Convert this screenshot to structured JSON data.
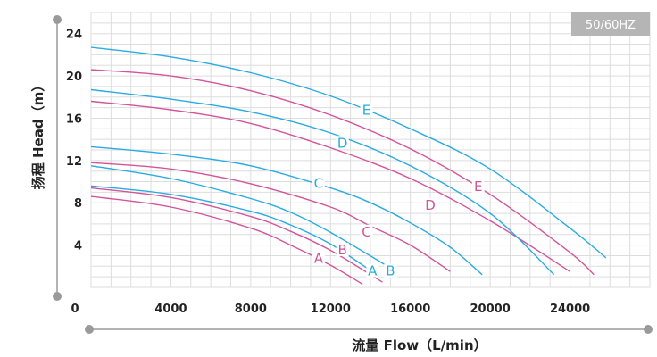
{
  "badge": "50/60HZ",
  "chart_data": {
    "type": "line",
    "xlabel": "流量 Flow（L/min）",
    "ylabel": "扬程 Head（m）",
    "xlim": [
      0,
      28000
    ],
    "ylim": [
      0,
      26
    ],
    "x_ticks": [
      "0",
      "4000",
      "8000",
      "12000",
      "16000",
      "20000",
      "24000"
    ],
    "x_tick_values": [
      0,
      4000,
      8000,
      12000,
      16000,
      20000,
      24000
    ],
    "y_ticks": [
      "4",
      "8",
      "12",
      "16",
      "20",
      "24"
    ],
    "y_tick_values": [
      4,
      8,
      12,
      16,
      20,
      24
    ],
    "grid": true,
    "colors": {
      "cyan": "#29abe2",
      "magenta": "#d2549a"
    },
    "series": [
      {
        "name": "A",
        "color": "#d2549a",
        "points": [
          [
            0,
            8.6
          ],
          [
            4000,
            7.6
          ],
          [
            8000,
            5.6
          ],
          [
            10000,
            4.0
          ],
          [
            12000,
            2.1
          ],
          [
            13600,
            0.3
          ]
        ],
        "label_at": [
          11400,
          2.5
        ]
      },
      {
        "name": "B",
        "color": "#d2549a",
        "points": [
          [
            0,
            9.4
          ],
          [
            4000,
            8.5
          ],
          [
            8000,
            6.7
          ],
          [
            10000,
            5.3
          ],
          [
            12000,
            3.5
          ],
          [
            14600,
            0.5
          ]
        ],
        "label_at": [
          12600,
          3.3
        ]
      },
      {
        "name": "A",
        "color": "#29abe2",
        "points": [
          [
            0,
            9.6
          ],
          [
            4000,
            8.8
          ],
          [
            8000,
            7.2
          ],
          [
            10000,
            5.9
          ],
          [
            12000,
            4.1
          ],
          [
            14000,
            1.6
          ]
        ],
        "label_at": [
          14100,
          1.3
        ]
      },
      {
        "name": "B",
        "color": "#29abe2",
        "points": [
          [
            0,
            11.5
          ],
          [
            4000,
            10.3
          ],
          [
            8000,
            8.4
          ],
          [
            10000,
            7.1
          ],
          [
            12000,
            5.2
          ],
          [
            15300,
            1.5
          ]
        ],
        "label_at": [
          15000,
          1.3
        ]
      },
      {
        "name": "C",
        "color": "#d2549a",
        "points": [
          [
            0,
            11.8
          ],
          [
            4000,
            11.2
          ],
          [
            8000,
            9.8
          ],
          [
            12000,
            7.6
          ],
          [
            14000,
            5.8
          ],
          [
            16000,
            4.0
          ],
          [
            18000,
            1.5
          ]
        ],
        "label_at": [
          13800,
          5.0
        ]
      },
      {
        "name": "C",
        "color": "#29abe2",
        "points": [
          [
            0,
            13.3
          ],
          [
            4000,
            12.6
          ],
          [
            8000,
            11.5
          ],
          [
            12000,
            9.4
          ],
          [
            14000,
            8.0
          ],
          [
            16000,
            6.1
          ],
          [
            18000,
            3.8
          ],
          [
            19600,
            1.2
          ]
        ],
        "label_at": [
          11400,
          9.6
        ]
      },
      {
        "name": "D",
        "color": "#d2549a",
        "points": [
          [
            0,
            17.6
          ],
          [
            4000,
            16.8
          ],
          [
            8000,
            15.5
          ],
          [
            12000,
            13.2
          ],
          [
            16000,
            10.3
          ],
          [
            20000,
            6.3
          ],
          [
            24000,
            1.5
          ]
        ],
        "label_at": [
          17000,
          7.5
        ]
      },
      {
        "name": "D",
        "color": "#29abe2",
        "points": [
          [
            0,
            18.7
          ],
          [
            4000,
            17.8
          ],
          [
            8000,
            16.6
          ],
          [
            12000,
            14.6
          ],
          [
            16000,
            11.5
          ],
          [
            20000,
            7.0
          ],
          [
            23200,
            1.2
          ]
        ],
        "label_at": [
          12600,
          13.4
        ]
      },
      {
        "name": "E",
        "color": "#d2549a",
        "points": [
          [
            0,
            20.6
          ],
          [
            4000,
            20.0
          ],
          [
            8000,
            18.6
          ],
          [
            12000,
            16.3
          ],
          [
            16000,
            13.1
          ],
          [
            20000,
            8.8
          ],
          [
            24000,
            3.3
          ],
          [
            25200,
            1.2
          ]
        ],
        "label_at": [
          19400,
          9.3
        ]
      },
      {
        "name": "E",
        "color": "#29abe2",
        "points": [
          [
            0,
            22.7
          ],
          [
            4000,
            21.8
          ],
          [
            8000,
            20.3
          ],
          [
            12000,
            18.1
          ],
          [
            16000,
            15.0
          ],
          [
            20000,
            11.2
          ],
          [
            24000,
            5.6
          ],
          [
            25800,
            2.8
          ]
        ],
        "label_at": [
          13800,
          16.5
        ]
      }
    ]
  }
}
